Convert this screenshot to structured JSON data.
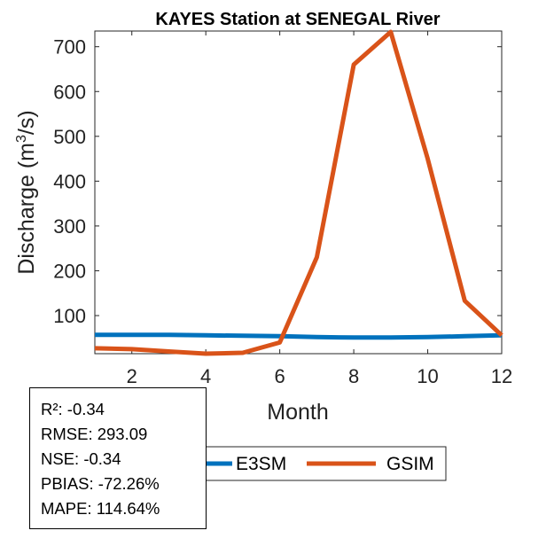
{
  "chart_data": {
    "type": "line",
    "title": "KAYES  Station at  SENEGAL  River",
    "xlabel": "Month",
    "ylabel": "Discharge (m³/s)",
    "ylabel_parts": {
      "pre": "Discharge (m",
      "sup": "3",
      "post": "/s)"
    },
    "xlim": [
      1,
      12
    ],
    "ylim": [
      15,
      735
    ],
    "xticks": [
      2,
      4,
      6,
      8,
      10,
      12
    ],
    "yticks": [
      100,
      200,
      300,
      400,
      500,
      600,
      700
    ],
    "grid": false,
    "legend_placement": "bottom-outside",
    "x": [
      1,
      2,
      3,
      4,
      5,
      6,
      7,
      8,
      9,
      10,
      11,
      12
    ],
    "series": [
      {
        "name": "E3SM",
        "color": "#0072BD",
        "values": [
          57,
          57,
          57,
          56,
          55,
          54,
          52,
          51,
          51,
          52,
          54,
          56
        ]
      },
      {
        "name": "GSIM",
        "color": "#D95319",
        "values": [
          27,
          25,
          20,
          15,
          17,
          40,
          230,
          660,
          733,
          450,
          133,
          56
        ]
      }
    ]
  },
  "stats": [
    "R²: -0.34",
    "RMSE: 293.09",
    "NSE: -0.34",
    "PBIAS: -72.26%",
    "MAPE: 114.64%"
  ]
}
